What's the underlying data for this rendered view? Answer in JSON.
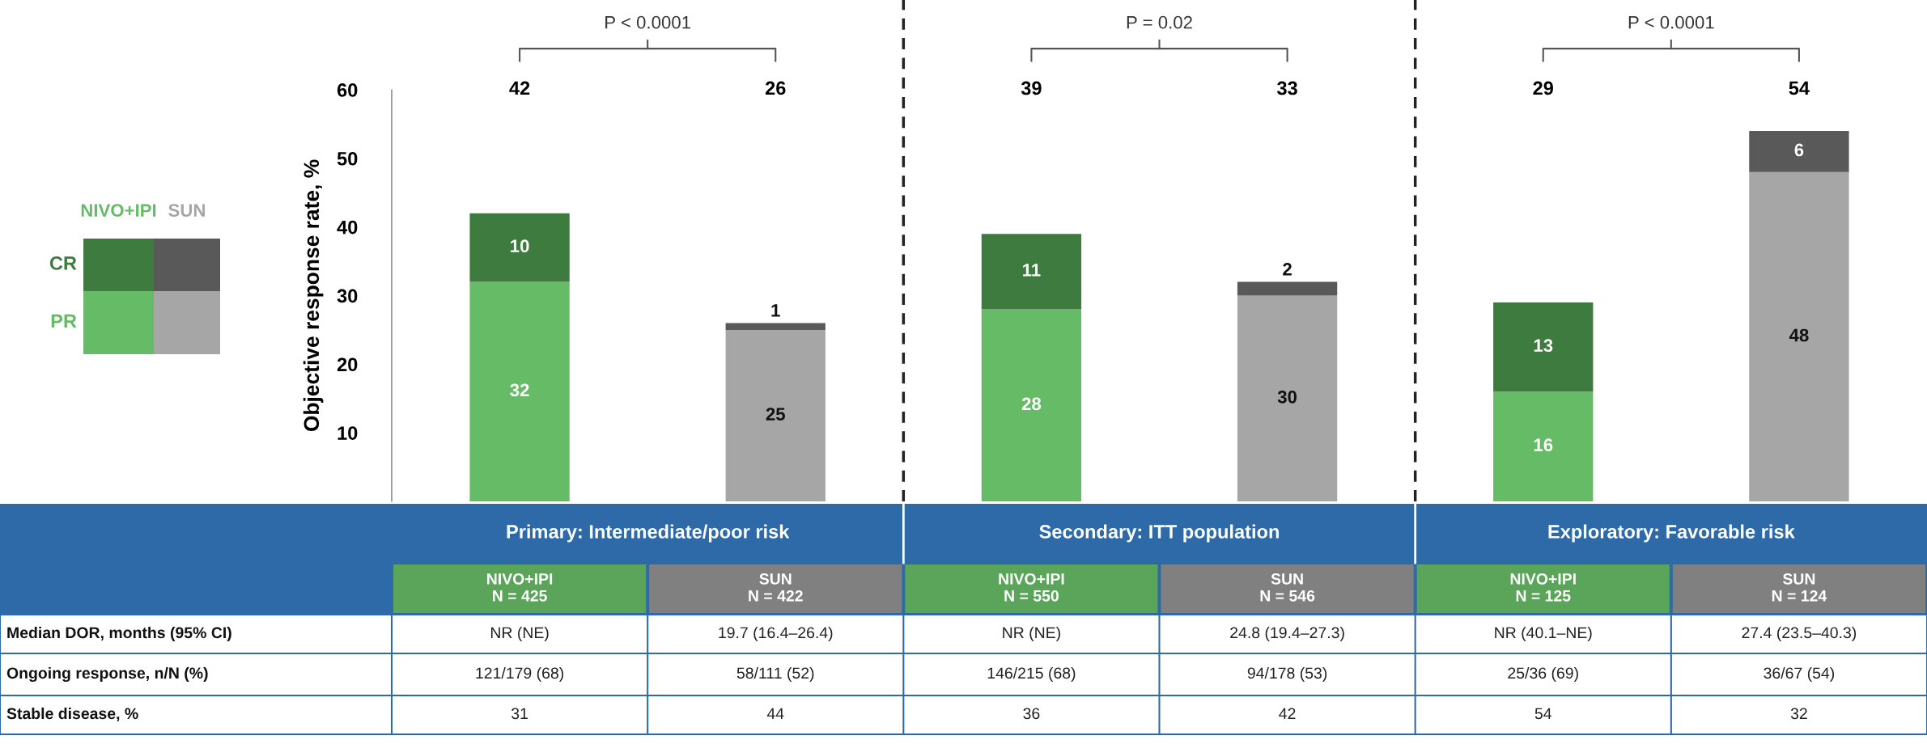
{
  "chart_data": {
    "type": "bar",
    "stacked": true,
    "categories": [
      "NIVO+IPI\nN = 425",
      "SUN\nN = 422",
      "NIVO+IPI\nN = 550",
      "SUN\nN = 546",
      "NIVO+IPI\nN = 125",
      "SUN\nN = 124"
    ],
    "series": [
      {
        "name": "PR",
        "color": "#66bb66",
        "colors": [
          "#66bb66",
          "#a6a6a6",
          "#66bb66",
          "#a6a6a6",
          "#66bb66",
          "#a6a6a6"
        ],
        "values": [
          32,
          25,
          28,
          30,
          16,
          48
        ]
      },
      {
        "name": "CR",
        "color": "#3e7b3e",
        "colors": [
          "#3e7b3e",
          "#595959",
          "#3e7b3e",
          "#595959",
          "#3e7b3e",
          "#595959"
        ],
        "values": [
          10,
          1,
          11,
          2,
          13,
          6
        ]
      }
    ],
    "data_labels": true,
    "ylabel": "Objective response rate, %",
    "ylim": [
      0,
      60
    ],
    "yticks": [
      10,
      20,
      30,
      40,
      50,
      60
    ],
    "grid": false,
    "legend": "left",
    "annotations": [
      "NIVO+IPI",
      "SUN",
      "P < 0.0001",
      "P = 0.02",
      "P < 0.0001",
      "42",
      "26",
      "39",
      "33",
      "29",
      "54",
      "Primary: Intermediate/poor risk",
      "Secondary: ITT population",
      "Exploratory: Favorable risk",
      "Median DOR, months (95% CI)",
      "NR (NE)",
      "19.7 (16.4–26.4)",
      "NR (NE)",
      "24.8 (19.4–27.3)",
      "NR (40.1–NE)",
      "27.4 (23.5–40.3)",
      "Ongoing response, n/N (%)",
      "121/179 (68)",
      "58/111 (52)",
      "146/215 (68)",
      "94/178 (53)",
      "25/36 (69)",
      "36/67 (54)",
      "Stable disease, %",
      "31",
      "44",
      "36",
      "42",
      "54",
      "32"
    ]
  }
}
